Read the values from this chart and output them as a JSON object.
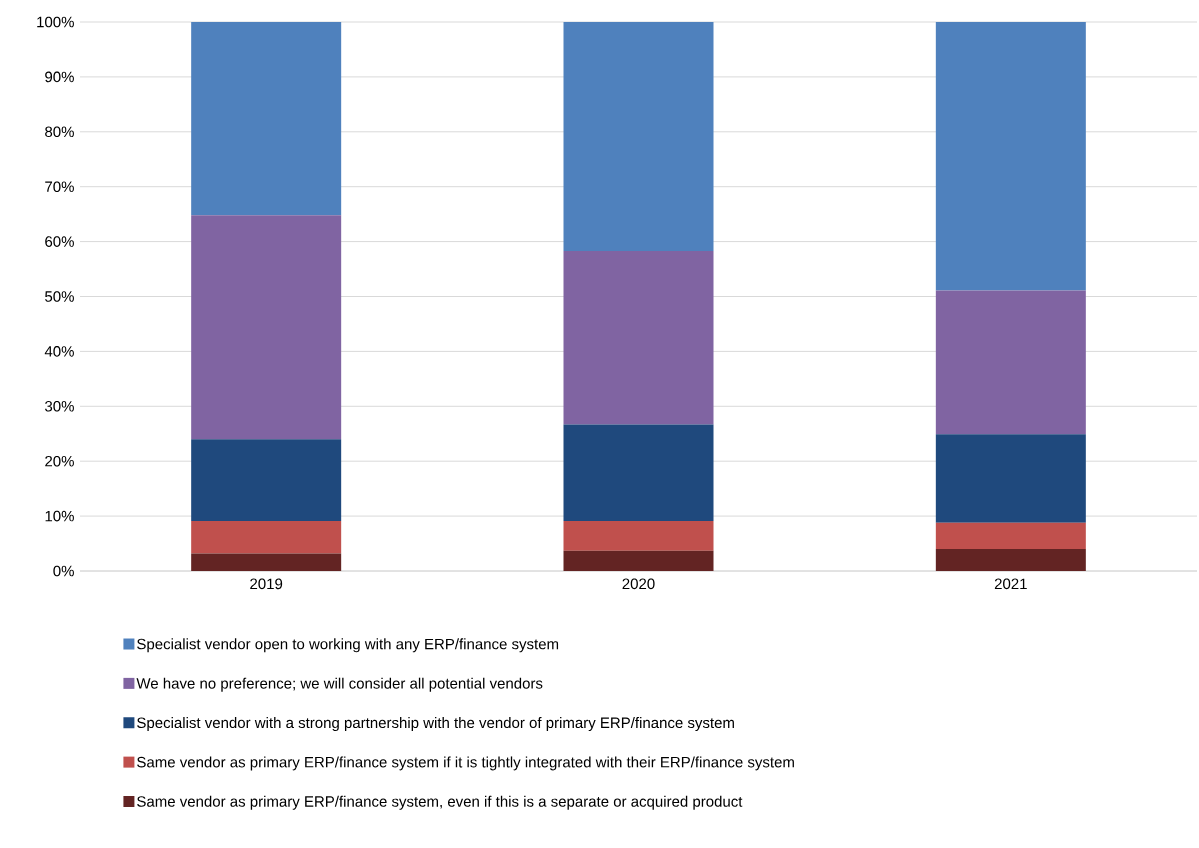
{
  "chart_data": {
    "type": "bar",
    "stacked": true,
    "categories": [
      "2019",
      "2020",
      "2021"
    ],
    "series": [
      {
        "name": "Same vendor as primary ERP/finance system, even if this is a separate or acquired product",
        "color": "#632423",
        "values": [
          3.2,
          3.7,
          4.0
        ]
      },
      {
        "name": "Same vendor as primary ERP/finance system if it is tightly integrated with their ERP/finance system",
        "color": "#c0504d",
        "values": [
          5.9,
          5.4,
          4.8
        ]
      },
      {
        "name": "Specialist vendor with a strong partnership with the vendor of primary ERP/finance system",
        "color": "#1f497d",
        "values": [
          14.9,
          17.6,
          16.1
        ]
      },
      {
        "name": "We have no preference; we will consider all potential vendors",
        "color": "#8064a2",
        "values": [
          40.8,
          31.6,
          26.2
        ]
      },
      {
        "name": "Specialist vendor open to working with any  ERP/finance system",
        "color": "#4f81bd",
        "values": [
          35.2,
          41.7,
          48.9
        ]
      }
    ],
    "ylim": [
      0,
      100
    ],
    "yticks": [
      {
        "value": 0,
        "label": "0%"
      },
      {
        "value": 10,
        "label": "10%"
      },
      {
        "value": 20,
        "label": "20%"
      },
      {
        "value": 30,
        "label": "30%"
      },
      {
        "value": 40,
        "label": "40%"
      },
      {
        "value": 50,
        "label": "50%"
      },
      {
        "value": 60,
        "label": "60%"
      },
      {
        "value": 70,
        "label": "70%"
      },
      {
        "value": 80,
        "label": "80%"
      },
      {
        "value": 90,
        "label": "90%"
      },
      {
        "value": 100,
        "label": "100%"
      }
    ],
    "grid": "y",
    "legend": "bottom"
  }
}
